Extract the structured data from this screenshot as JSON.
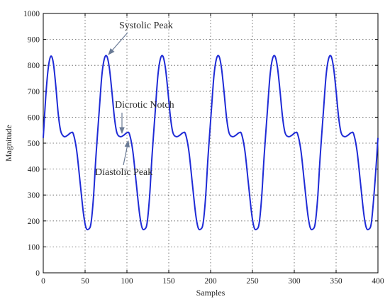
{
  "chart_data": {
    "type": "line",
    "title": "",
    "xlabel": "Samples",
    "ylabel": "Magnitude",
    "xlim": [
      0,
      400
    ],
    "ylim": [
      0,
      1000
    ],
    "x_ticks": [
      "0",
      "50",
      "100",
      "150",
      "200",
      "250",
      "300",
      "350",
      "400"
    ],
    "y_ticks": [
      "0",
      "100",
      "200",
      "300",
      "400",
      "500",
      "600",
      "700",
      "800",
      "900",
      "1000"
    ],
    "grid": true,
    "line_color": "#1f2bd6",
    "series": [
      {
        "x": [
          0,
          3,
          6,
          9,
          12,
          15,
          18,
          21,
          25,
          29,
          33,
          36,
          40,
          44,
          48,
          51,
          54,
          57,
          60,
          63,
          67,
          70,
          73,
          76,
          79,
          82,
          85,
          88,
          92,
          96,
          100,
          103,
          107,
          111,
          115,
          118,
          121,
          124,
          127,
          130,
          134,
          137,
          140,
          143,
          146,
          149,
          152,
          155,
          159,
          163,
          167,
          170,
          174,
          178,
          182,
          185,
          188,
          191,
          194,
          197,
          201,
          204,
          207,
          210,
          213,
          216,
          219,
          222,
          226,
          230,
          234,
          237,
          241,
          245,
          249,
          252,
          255,
          258,
          261,
          264,
          268,
          271,
          274,
          277,
          280,
          283,
          286,
          289,
          293,
          297,
          301,
          304,
          308,
          312,
          316,
          319,
          322,
          325,
          328,
          331,
          335,
          338,
          341,
          344,
          347,
          350,
          353,
          356,
          360,
          364,
          368,
          371,
          375,
          379,
          383,
          386,
          389,
          392,
          395,
          398,
          400
        ],
        "y": [
          520,
          680,
          790,
          835,
          810,
          720,
          610,
          545,
          525,
          530,
          540,
          535,
          470,
          350,
          230,
          175,
          168,
          190,
          290,
          450,
          630,
          760,
          825,
          835,
          790,
          700,
          600,
          540,
          525,
          530,
          540,
          535,
          470,
          350,
          230,
          175,
          168,
          190,
          290,
          450,
          630,
          760,
          825,
          835,
          790,
          700,
          600,
          540,
          525,
          530,
          540,
          535,
          470,
          350,
          230,
          175,
          168,
          190,
          290,
          450,
          630,
          760,
          825,
          835,
          790,
          700,
          600,
          540,
          525,
          530,
          540,
          535,
          470,
          350,
          230,
          175,
          168,
          190,
          290,
          450,
          630,
          760,
          825,
          835,
          790,
          700,
          600,
          540,
          525,
          530,
          540,
          535,
          470,
          350,
          230,
          175,
          168,
          190,
          290,
          450,
          630,
          760,
          825,
          835,
          790,
          700,
          600,
          540,
          525,
          530,
          540,
          535,
          470,
          350,
          230,
          175,
          168,
          190,
          290,
          420,
          520
        ]
      }
    ],
    "annotations": [
      {
        "text": "Systolic Peak",
        "x": 77,
        "y": 835
      },
      {
        "text": "Dicrotic Notch",
        "x": 95,
        "y": 525
      },
      {
        "text": "Diastolic Peak",
        "x": 101,
        "y": 540
      }
    ]
  }
}
